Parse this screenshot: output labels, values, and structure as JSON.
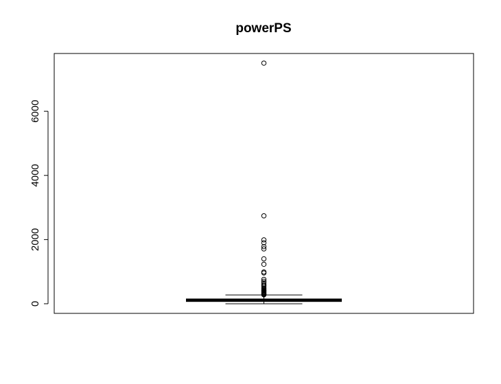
{
  "chart_data": {
    "type": "box",
    "title": "powerPS",
    "xlabel": "",
    "ylabel": "",
    "ylim": [
      -300,
      7800
    ],
    "yticks": [
      0,
      2000,
      4000,
      6000
    ],
    "ytick_labels": [
      "0",
      "2000",
      "4000",
      "6000"
    ],
    "grid": false,
    "box": {
      "min": 0,
      "q1": 70,
      "median": 105,
      "q3": 150,
      "max": 275
    },
    "outliers": [
      7500,
      2740,
      1990,
      1900,
      1780,
      1710,
      1400,
      1230,
      990,
      960,
      760,
      700,
      650,
      600,
      560,
      520,
      480,
      450,
      420,
      400,
      380,
      360,
      340,
      320,
      300,
      290,
      280
    ]
  }
}
